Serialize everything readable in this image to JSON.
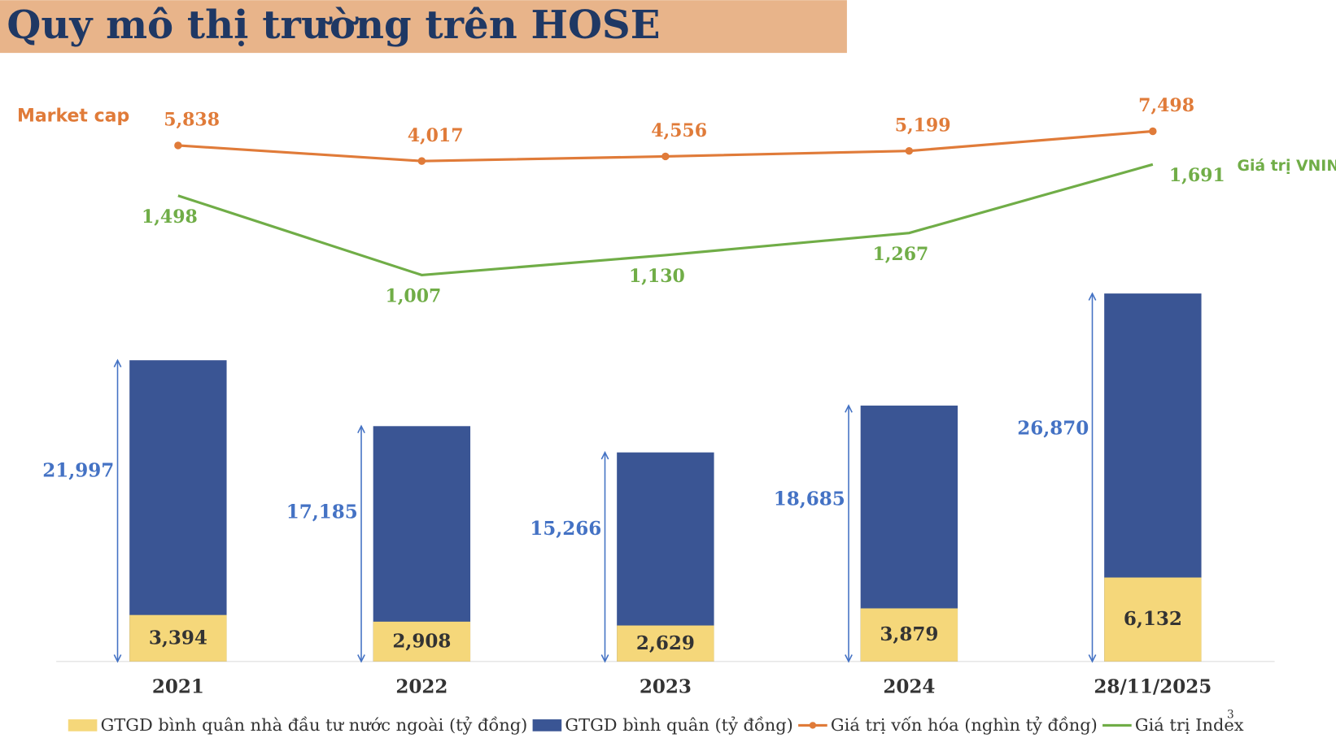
{
  "chart_data": {
    "type": "bar_line",
    "title": "Quy mô thị trường trên HOSE",
    "annotations": [
      "Market cap",
      "Giá trị VNINDEX"
    ],
    "page_number": "3",
    "categories": [
      "2021",
      "2022",
      "2023",
      "2024",
      "28/11/2025"
    ],
    "ylim": [
      0,
      30000
    ],
    "y2lim": [
      0,
      20000
    ],
    "y3lim": [
      0,
      2000
    ],
    "series": [
      {
        "name": "GTGD bình quân nhà đầu tư nước ngoài (tỷ đồng)",
        "color": "#f5d77a",
        "kind": "bar",
        "values": [
          3394,
          2908,
          2629,
          3879,
          6132
        ],
        "value_labels": [
          "3,394",
          "2,908",
          "2,629",
          "3,879",
          "6,132"
        ]
      },
      {
        "name": "GTGD bình quân (tỷ đồng)",
        "color": "#3a5594",
        "kind": "bar",
        "values": [
          21997,
          17185,
          15266,
          18685,
          26870
        ],
        "value_labels": [
          "21,997",
          "17,185",
          "15,266",
          "18,685",
          "26,870"
        ]
      },
      {
        "name": "Giá trị vốn hóa (nghìn tỷ đồng)",
        "color": "#e07b39",
        "kind": "line",
        "axis": "y2",
        "values": [
          5838,
          4017,
          4556,
          5199,
          7498
        ],
        "value_labels": [
          "5,838",
          "4,017",
          "4,556",
          "5,199",
          "7,498"
        ]
      },
      {
        "name": "Giá trị Index",
        "color": "#70ad47",
        "kind": "line",
        "axis": "y3",
        "values": [
          1498,
          1007,
          1130,
          1267,
          1691
        ],
        "value_labels": [
          "1,498",
          "1,007",
          "1,130",
          "1,267",
          "1,691"
        ]
      }
    ]
  }
}
